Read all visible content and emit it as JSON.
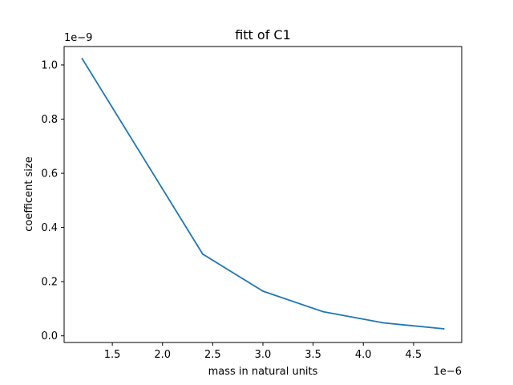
{
  "chart_data": {
    "type": "line",
    "title": "fitt of C1",
    "xlabel": "mass in natural units",
    "ylabel": "coefficent size",
    "x_offset_label": "1e−6",
    "y_offset_label": "1e−9",
    "xlim": [
      1.02e-06,
      4.98e-06
    ],
    "ylim": [
      -2.45e-11,
      1.068e-09
    ],
    "xticks": [
      {
        "value": 1.5e-06,
        "label": "1.5"
      },
      {
        "value": 2e-06,
        "label": "2.0"
      },
      {
        "value": 2.5e-06,
        "label": "2.5"
      },
      {
        "value": 3e-06,
        "label": "3.0"
      },
      {
        "value": 3.5e-06,
        "label": "3.5"
      },
      {
        "value": 4e-06,
        "label": "4.0"
      },
      {
        "value": 4.5e-06,
        "label": "4.5"
      }
    ],
    "yticks": [
      {
        "value": 0.0,
        "label": "0.0"
      },
      {
        "value": 2e-10,
        "label": "0.2"
      },
      {
        "value": 4e-10,
        "label": "0.4"
      },
      {
        "value": 6e-10,
        "label": "0.6"
      },
      {
        "value": 8e-10,
        "label": "0.8"
      },
      {
        "value": 1e-09,
        "label": "1.0"
      }
    ],
    "grid": false,
    "series": [
      {
        "color": "#1f77b4",
        "x": [
          1.2e-06,
          2.4e-06,
          3e-06,
          3.6e-06,
          4.2e-06,
          4.8e-06
        ],
        "y": [
          1.023e-09,
          3.02e-10,
          1.65e-10,
          8.9e-11,
          4.8e-11,
          2.6e-11
        ]
      }
    ]
  }
}
